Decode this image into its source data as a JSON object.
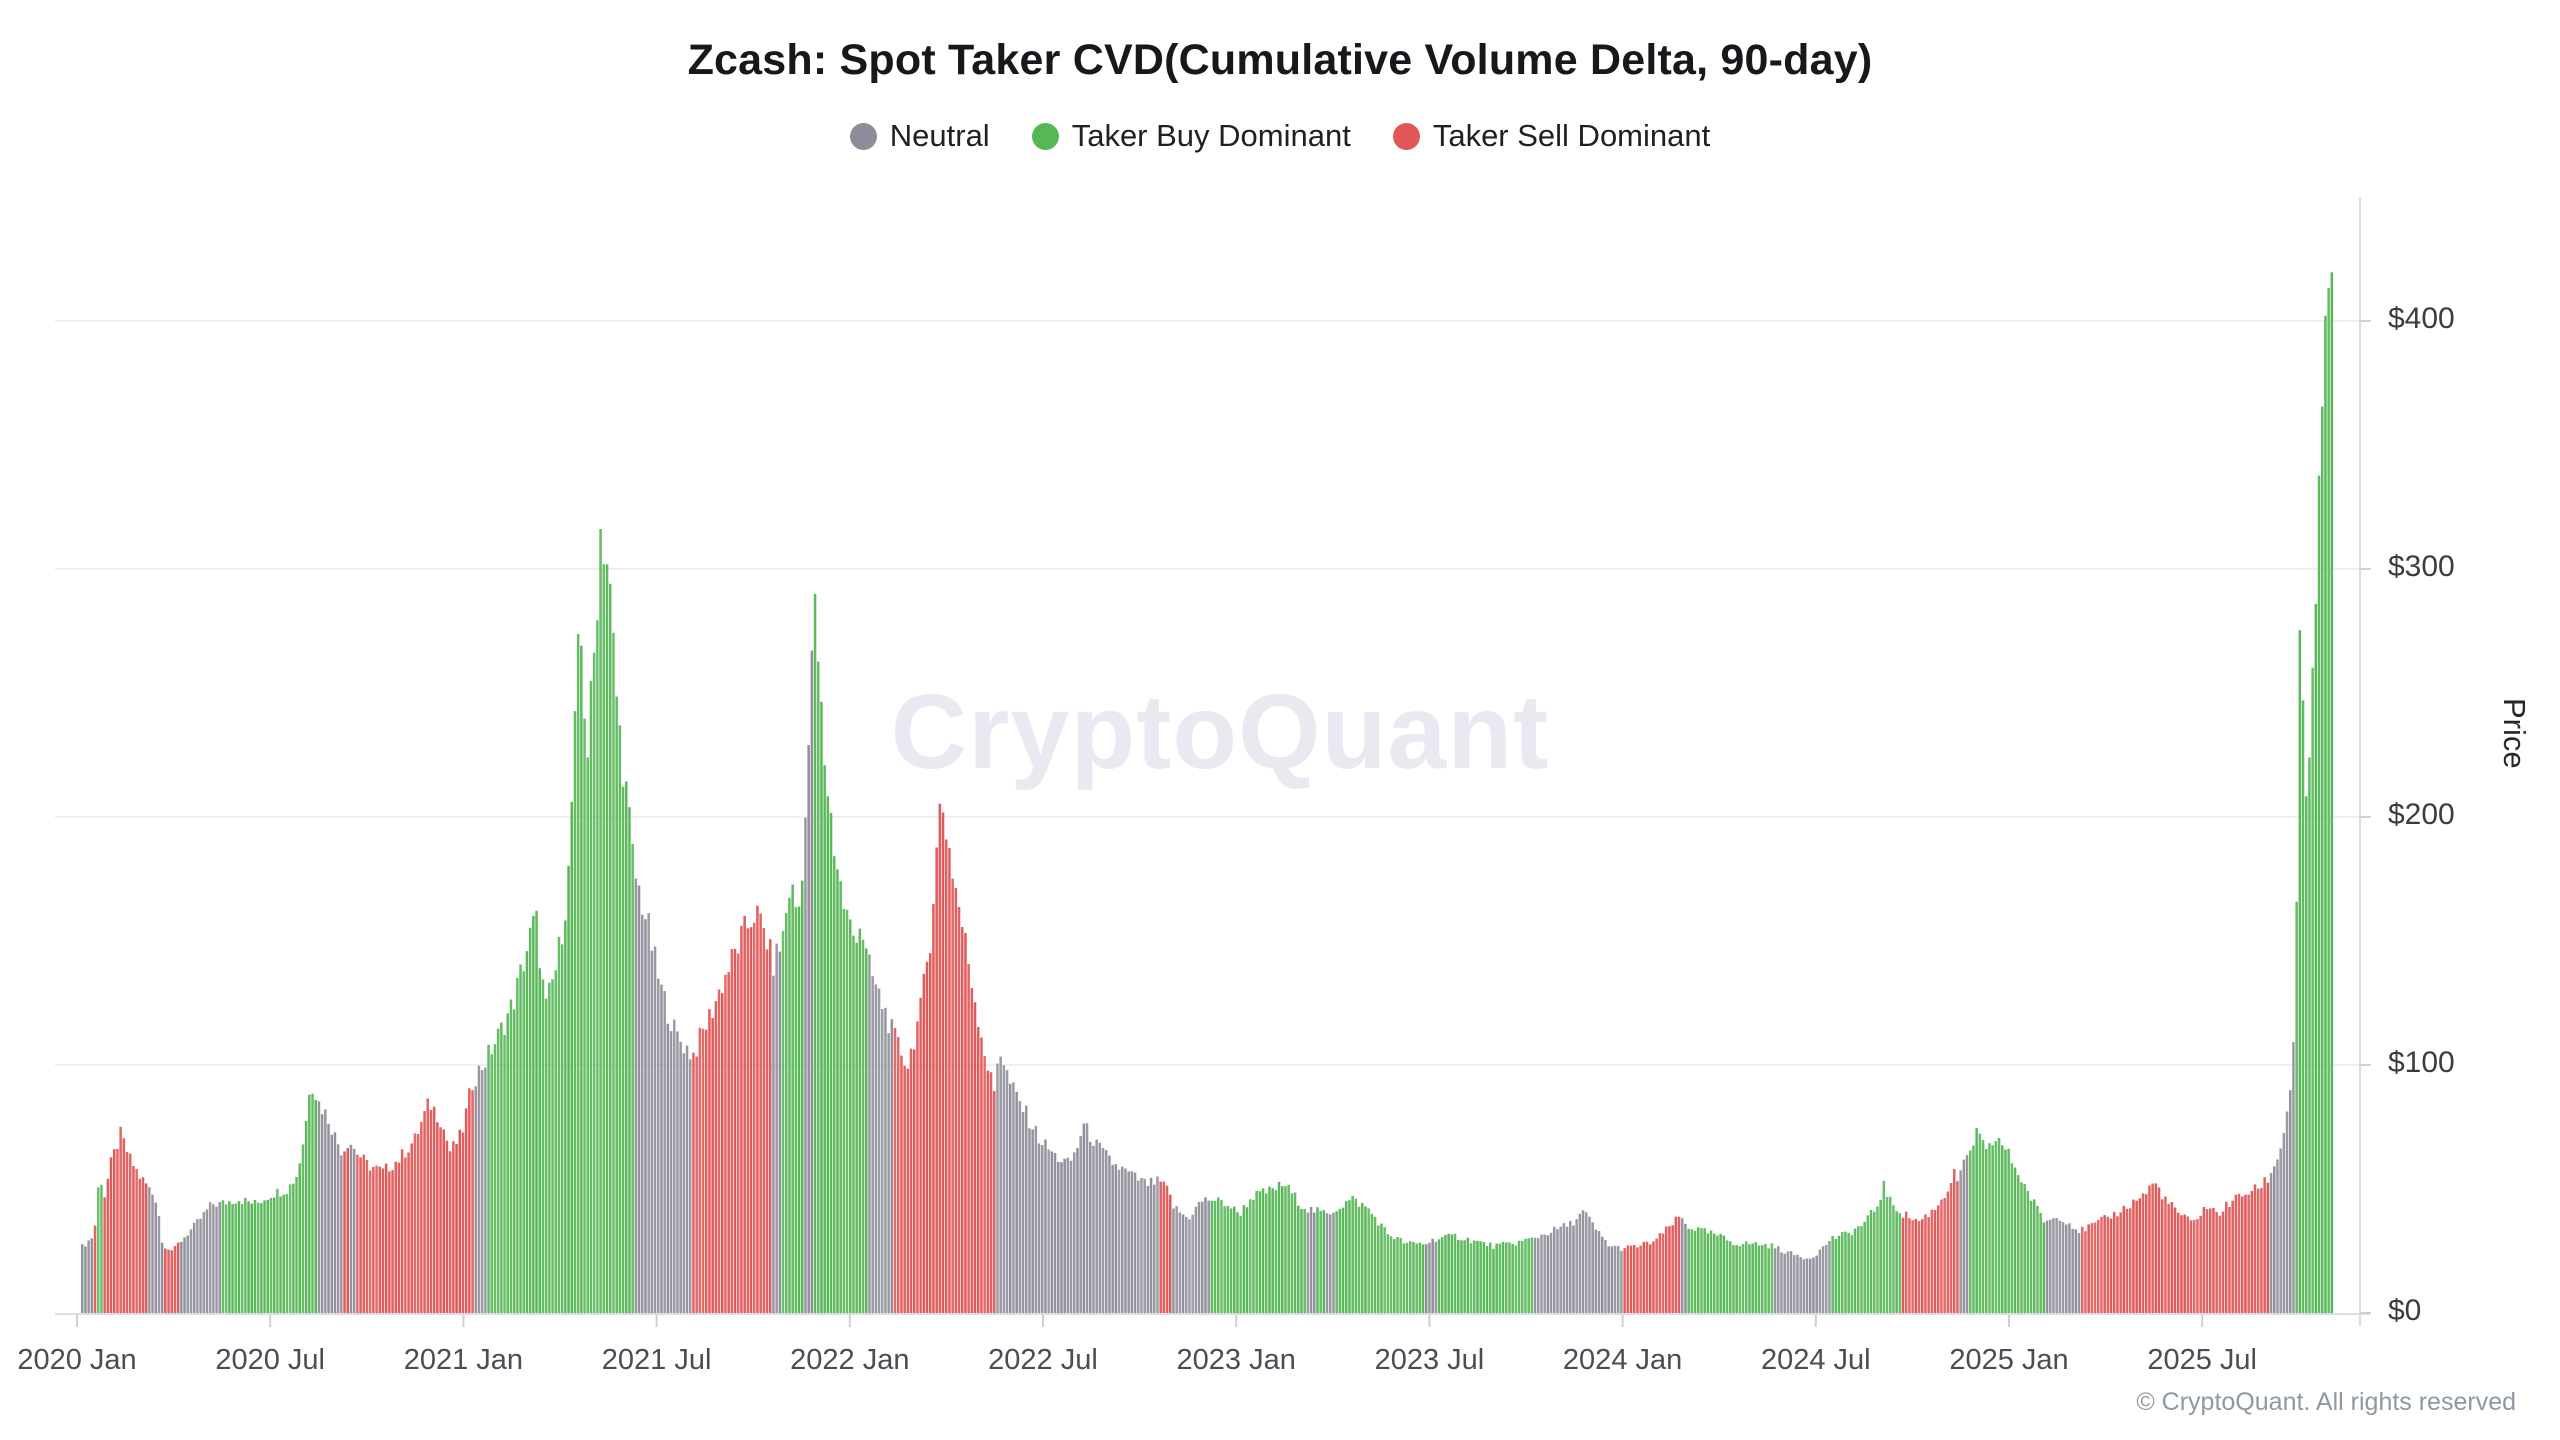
{
  "page": {
    "title": "Zcash: Spot Taker CVD(Cumulative Volume Delta, 90-day)"
  },
  "legend": {
    "items": [
      {
        "key": "n",
        "label": "Neutral",
        "color": "#8d8d99"
      },
      {
        "key": "g",
        "label": "Taker Buy Dominant",
        "color": "#57b757"
      },
      {
        "key": "r",
        "label": "Taker Sell Dominant",
        "color": "#e15656"
      }
    ]
  },
  "watermark": {
    "text": "CryptoQuant"
  },
  "footer": {
    "copyright": "© CryptoQuant. All rights reserved"
  },
  "chart_data": {
    "type": "bar",
    "title": "Zcash: Spot Taker CVD(Cumulative Volume Delta, 90-day)",
    "subtitle": "",
    "xlabel": "",
    "ylabel": "Price",
    "grid": "horizontal-only",
    "legend_position": "top-center",
    "bar_unit": "daily ZEC price (USD) colored by 90-day spot taker CVD regime",
    "x_axis": {
      "origin": "2020 Jan",
      "unit": "months since 2020 Jan",
      "ticks": [
        {
          "m": 0,
          "label": "2020 Jan"
        },
        {
          "m": 6,
          "label": "2020 Jul"
        },
        {
          "m": 12,
          "label": "2021 Jan"
        },
        {
          "m": 18,
          "label": "2021 Jul"
        },
        {
          "m": 24,
          "label": "2022 Jan"
        },
        {
          "m": 30,
          "label": "2022 Jul"
        },
        {
          "m": 36,
          "label": "2023 Jan"
        },
        {
          "m": 42,
          "label": "2023 Jul"
        },
        {
          "m": 48,
          "label": "2024 Jan"
        },
        {
          "m": 54,
          "label": "2024 Jul"
        },
        {
          "m": 60,
          "label": "2025 Jan"
        },
        {
          "m": 66,
          "label": "2025 Jul"
        }
      ]
    },
    "y_axis": {
      "label": "Price",
      "range": [
        0,
        450
      ],
      "ticks": [
        {
          "value": 0,
          "label": "$0"
        },
        {
          "value": 100,
          "label": "$100"
        },
        {
          "value": 200,
          "label": "$200"
        },
        {
          "value": 300,
          "label": "$300"
        },
        {
          "value": 400,
          "label": "$400"
        }
      ]
    },
    "categories": {
      "n": "Neutral",
      "g": "Taker Buy Dominant",
      "r": "Taker Sell Dominant"
    },
    "colors": {
      "n": "#8f8f9b",
      "g": "#57b757",
      "r": "#e15656"
    },
    "points_format": "[month_index_from_2020_Jan, price_usd, regime_of_segment_starting_here]",
    "points": [
      [
        0.1,
        26,
        "n"
      ],
      [
        0.35,
        29,
        "n"
      ],
      [
        0.5,
        31,
        "r"
      ],
      [
        0.62,
        40,
        "g"
      ],
      [
        0.7,
        61,
        "g"
      ],
      [
        0.82,
        45,
        "r"
      ],
      [
        1.05,
        60,
        "r"
      ],
      [
        1.35,
        72,
        "r"
      ],
      [
        1.65,
        62,
        "r"
      ],
      [
        1.95,
        55,
        "r"
      ],
      [
        2.15,
        52,
        "n"
      ],
      [
        2.5,
        45,
        "n"
      ],
      [
        2.65,
        28,
        "r"
      ],
      [
        3.0,
        25,
        "r"
      ],
      [
        3.15,
        28,
        "n"
      ],
      [
        3.65,
        35,
        "n"
      ],
      [
        4.2,
        44,
        "n"
      ],
      [
        4.45,
        44,
        "g"
      ],
      [
        5.0,
        46,
        "g"
      ],
      [
        5.55,
        44,
        "g"
      ],
      [
        6.05,
        48,
        "g"
      ],
      [
        6.55,
        50,
        "g"
      ],
      [
        6.85,
        56,
        "g"
      ],
      [
        7.1,
        75,
        "g"
      ],
      [
        7.25,
        95,
        "g"
      ],
      [
        7.5,
        85,
        "n"
      ],
      [
        7.8,
        79,
        "n"
      ],
      [
        8.05,
        70,
        "n"
      ],
      [
        8.25,
        65,
        "r"
      ],
      [
        8.45,
        70,
        "n"
      ],
      [
        8.62,
        66,
        "r"
      ],
      [
        9.0,
        60,
        "r"
      ],
      [
        9.5,
        57,
        "r"
      ],
      [
        10.0,
        62,
        "r"
      ],
      [
        10.5,
        70,
        "r"
      ],
      [
        10.95,
        85,
        "r"
      ],
      [
        11.3,
        78,
        "r"
      ],
      [
        11.6,
        65,
        "r"
      ],
      [
        11.95,
        72,
        "r"
      ],
      [
        12.3,
        94,
        "n"
      ],
      [
        12.7,
        102,
        "g"
      ],
      [
        13.1,
        112,
        "g"
      ],
      [
        13.55,
        125,
        "g"
      ],
      [
        14.0,
        148,
        "g"
      ],
      [
        14.25,
        160,
        "g"
      ],
      [
        14.55,
        122,
        "g"
      ],
      [
        14.9,
        140,
        "g"
      ],
      [
        15.25,
        172,
        "g"
      ],
      [
        15.62,
        279,
        "g"
      ],
      [
        15.85,
        225,
        "g"
      ],
      [
        16.05,
        262,
        "g"
      ],
      [
        16.27,
        318,
        "g"
      ],
      [
        16.5,
        300,
        "g"
      ],
      [
        16.8,
        240,
        "g"
      ],
      [
        17.1,
        205,
        "g"
      ],
      [
        17.3,
        178,
        "n"
      ],
      [
        17.7,
        158,
        "n"
      ],
      [
        18.1,
        132,
        "n"
      ],
      [
        18.6,
        112,
        "n"
      ],
      [
        19.13,
        104,
        "r"
      ],
      [
        19.6,
        118,
        "r"
      ],
      [
        20.1,
        135,
        "r"
      ],
      [
        20.6,
        150,
        "r"
      ],
      [
        21.05,
        162,
        "r"
      ],
      [
        21.4,
        152,
        "r"
      ],
      [
        21.6,
        140,
        "n"
      ],
      [
        21.9,
        150,
        "g"
      ],
      [
        22.15,
        173,
        "g"
      ],
      [
        22.4,
        160,
        "g"
      ],
      [
        22.6,
        195,
        "n"
      ],
      [
        22.75,
        229,
        "n"
      ],
      [
        22.86,
        293,
        "g"
      ],
      [
        23.0,
        265,
        "g"
      ],
      [
        23.2,
        225,
        "g"
      ],
      [
        23.5,
        190,
        "g"
      ],
      [
        23.8,
        165,
        "g"
      ],
      [
        24.1,
        152,
        "g"
      ],
      [
        24.35,
        158,
        "g"
      ],
      [
        24.53,
        142,
        "n"
      ],
      [
        24.9,
        128,
        "n"
      ],
      [
        25.15,
        120,
        "n"
      ],
      [
        25.34,
        112,
        "r"
      ],
      [
        25.8,
        100,
        "r"
      ],
      [
        26.2,
        122,
        "r"
      ],
      [
        26.5,
        152,
        "r"
      ],
      [
        26.83,
        209,
        "r"
      ],
      [
        27.2,
        178,
        "r"
      ],
      [
        27.55,
        152,
        "r"
      ],
      [
        27.95,
        122,
        "r"
      ],
      [
        28.3,
        98,
        "r"
      ],
      [
        28.51,
        88,
        "n"
      ],
      [
        28.62,
        109,
        "n"
      ],
      [
        28.95,
        93,
        "n"
      ],
      [
        29.4,
        82,
        "n"
      ],
      [
        29.9,
        70,
        "n"
      ],
      [
        30.4,
        63,
        "n"
      ],
      [
        30.8,
        60,
        "n"
      ],
      [
        31.05,
        66,
        "n"
      ],
      [
        31.24,
        76,
        "n"
      ],
      [
        31.7,
        67,
        "n"
      ],
      [
        32.2,
        60,
        "n"
      ],
      [
        32.7,
        56,
        "n"
      ],
      [
        33.2,
        52,
        "n"
      ],
      [
        33.63,
        53,
        "r"
      ],
      [
        33.9,
        49,
        "r"
      ],
      [
        34.04,
        43,
        "n"
      ],
      [
        34.5,
        38,
        "n"
      ],
      [
        34.9,
        45,
        "n"
      ],
      [
        35.19,
        46,
        "g"
      ],
      [
        35.7,
        44,
        "g"
      ],
      [
        36.1,
        40,
        "g"
      ],
      [
        36.5,
        47,
        "g"
      ],
      [
        37.0,
        49,
        "g"
      ],
      [
        37.5,
        52,
        "g"
      ],
      [
        38.0,
        44,
        "g"
      ],
      [
        38.2,
        42,
        "n"
      ],
      [
        38.5,
        41,
        "g"
      ],
      [
        38.8,
        40,
        "n"
      ],
      [
        39.1,
        42,
        "g"
      ],
      [
        39.6,
        46,
        "g"
      ],
      [
        40.1,
        42,
        "g"
      ],
      [
        40.7,
        32,
        "g"
      ],
      [
        41.3,
        28,
        "g"
      ],
      [
        41.9,
        28,
        "n"
      ],
      [
        42.2,
        30,
        "g"
      ],
      [
        42.8,
        31,
        "g"
      ],
      [
        43.4,
        29,
        "g"
      ],
      [
        44.0,
        27,
        "g"
      ],
      [
        44.6,
        28,
        "g"
      ],
      [
        45.2,
        30,
        "n"
      ],
      [
        45.8,
        33,
        "n"
      ],
      [
        46.4,
        36,
        "n"
      ],
      [
        46.8,
        41,
        "n"
      ],
      [
        47.2,
        33,
        "n"
      ],
      [
        47.6,
        27,
        "n"
      ],
      [
        48.0,
        26,
        "r"
      ],
      [
        48.5,
        27,
        "r"
      ],
      [
        49.0,
        29,
        "r"
      ],
      [
        49.55,
        36,
        "r"
      ],
      [
        49.8,
        39,
        "n"
      ],
      [
        50.0,
        35,
        "g"
      ],
      [
        50.5,
        33,
        "g"
      ],
      [
        51.0,
        31,
        "g"
      ],
      [
        51.5,
        28,
        "g"
      ],
      [
        52.1,
        28,
        "g"
      ],
      [
        52.64,
        27,
        "n"
      ],
      [
        53.2,
        24,
        "n"
      ],
      [
        53.8,
        22,
        "n"
      ],
      [
        54.2,
        26,
        "n"
      ],
      [
        54.47,
        30,
        "g"
      ],
      [
        55.0,
        32,
        "g"
      ],
      [
        55.5,
        36,
        "g"
      ],
      [
        55.95,
        44,
        "g"
      ],
      [
        56.1,
        52,
        "g"
      ],
      [
        56.3,
        45,
        "g"
      ],
      [
        56.7,
        40,
        "r"
      ],
      [
        57.2,
        37,
        "r"
      ],
      [
        57.7,
        42,
        "r"
      ],
      [
        58.1,
        50,
        "r"
      ],
      [
        58.3,
        56,
        "r"
      ],
      [
        58.4,
        54,
        "n"
      ],
      [
        58.7,
        62,
        "g"
      ],
      [
        59.0,
        73,
        "g"
      ],
      [
        59.3,
        64,
        "g"
      ],
      [
        59.6,
        71,
        "g"
      ],
      [
        59.9,
        66,
        "g"
      ],
      [
        60.3,
        56,
        "g"
      ],
      [
        60.7,
        46,
        "g"
      ],
      [
        61.1,
        37,
        "n"
      ],
      [
        61.6,
        39,
        "n"
      ],
      [
        62.2,
        33,
        "r"
      ],
      [
        62.7,
        36,
        "r"
      ],
      [
        63.3,
        40,
        "r"
      ],
      [
        63.8,
        44,
        "r"
      ],
      [
        64.3,
        49,
        "r"
      ],
      [
        64.5,
        53,
        "r"
      ],
      [
        64.9,
        45,
        "r"
      ],
      [
        65.3,
        40,
        "r"
      ],
      [
        65.7,
        36,
        "r"
      ],
      [
        66.1,
        43,
        "r"
      ],
      [
        66.5,
        40,
        "r"
      ],
      [
        66.9,
        45,
        "r"
      ],
      [
        67.3,
        48,
        "r"
      ],
      [
        67.7,
        50,
        "r"
      ],
      [
        68.1,
        55,
        "n"
      ],
      [
        68.4,
        65,
        "n"
      ],
      [
        68.6,
        78,
        "n"
      ],
      [
        68.75,
        91,
        "n"
      ],
      [
        68.85,
        115,
        "g"
      ],
      [
        68.95,
        180,
        "g"
      ],
      [
        69.05,
        288,
        "g"
      ],
      [
        69.15,
        230,
        "g"
      ],
      [
        69.25,
        192,
        "g"
      ],
      [
        69.4,
        250,
        "g"
      ],
      [
        69.55,
        300,
        "g"
      ],
      [
        69.7,
        350,
        "g"
      ],
      [
        69.85,
        400,
        "g"
      ],
      [
        69.95,
        428,
        "g"
      ],
      [
        70.05,
        408,
        "g"
      ],
      [
        70.1,
        422,
        "g"
      ]
    ]
  }
}
